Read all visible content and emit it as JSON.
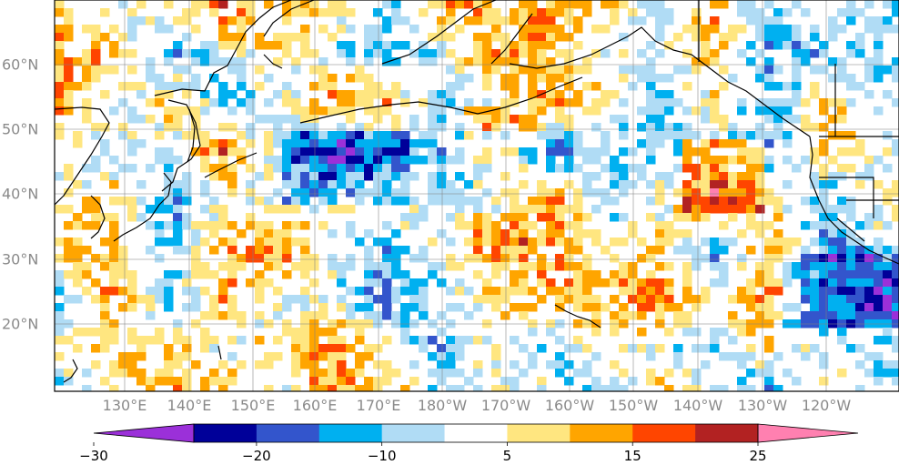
{
  "map": {
    "lon_labels": [
      "130°E",
      "140°E",
      "150°E",
      "160°E",
      "170°E",
      "180°W",
      "170°W",
      "160°W",
      "150°W",
      "140°W",
      "130°W",
      "120°W"
    ],
    "lat_labels": [
      "60°N",
      "50°N",
      "40°N",
      "30°N",
      "20°N"
    ],
    "colorbar": {
      "colors": [
        "#9b30d9",
        "#000099",
        "#3355cc",
        "#00b0f0",
        "#b0dcf5",
        "#ffffff",
        "#ffe680",
        "#ffa500",
        "#ff4500",
        "#b22222",
        "#ff80b0"
      ],
      "bounds": [
        -30,
        -25,
        -20,
        -15,
        -10,
        -5,
        5,
        10,
        15,
        20,
        25,
        30
      ],
      "tick_labels": [
        "−30",
        "−20",
        "−10",
        "5",
        "15",
        "25"
      ],
      "tick_values": [
        -30,
        -20,
        -10,
        5,
        15,
        25
      ]
    }
  }
}
